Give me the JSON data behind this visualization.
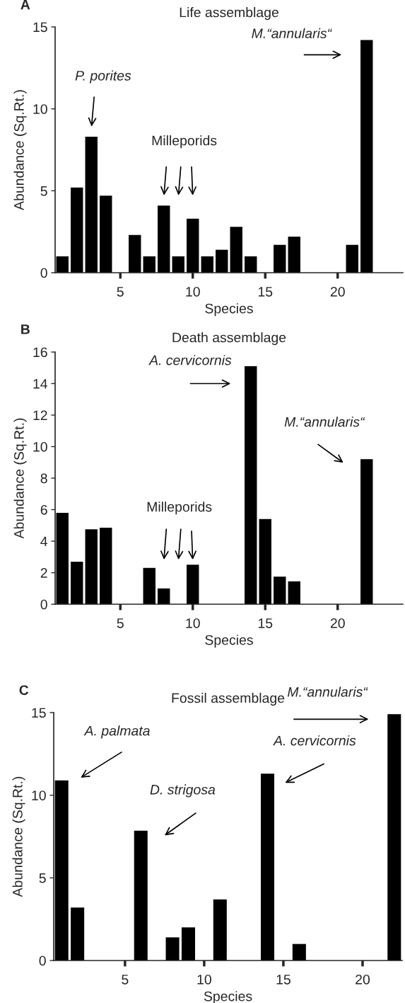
{
  "chart_data": [
    {
      "type": "bar",
      "title": "Life assemblage",
      "xlabel": "Species",
      "ylabel": "Abundance (Sq.Rt.)",
      "x": [
        1,
        2,
        3,
        4,
        6,
        7,
        8,
        9,
        10,
        11,
        12,
        13,
        14,
        16,
        17,
        21,
        22
      ],
      "values": [
        1.0,
        5.2,
        8.3,
        4.7,
        2.3,
        1.0,
        4.1,
        1.0,
        3.3,
        1.0,
        1.4,
        2.8,
        1.0,
        1.7,
        2.2,
        1.7,
        14.2
      ],
      "color": "#000000",
      "xlim": [
        0.5,
        24.5
      ],
      "xticks": [
        5,
        10,
        15,
        20
      ],
      "ylim": [
        0,
        15
      ],
      "yticks": [
        0,
        5,
        10,
        15
      ],
      "grid": false,
      "legend": false,
      "annotations": [
        "A",
        "P. porites",
        "Milleporids",
        "M.“annularis“"
      ]
    },
    {
      "type": "bar",
      "title": "Death assemblage",
      "xlabel": "Species",
      "ylabel": "Abundance (Sq.Rt.)",
      "x": [
        1,
        2,
        3,
        4,
        7,
        8,
        10,
        14,
        15,
        16,
        17,
        22
      ],
      "values": [
        5.8,
        2.7,
        4.75,
        4.85,
        2.3,
        1.0,
        2.5,
        15.1,
        5.4,
        1.75,
        1.45,
        9.2
      ],
      "color": "#000000",
      "xlim": [
        0.5,
        24.5
      ],
      "xticks": [
        5,
        10,
        15,
        20
      ],
      "ylim": [
        0,
        16
      ],
      "yticks": [
        0,
        2,
        4,
        6,
        8,
        10,
        12,
        14,
        16
      ],
      "grid": false,
      "legend": false,
      "annotations": [
        "B",
        "A. cervicornis",
        "M.“annularis“",
        "Milleporids"
      ]
    },
    {
      "type": "bar",
      "title": "Fossil assemblage",
      "xlabel": "Species",
      "ylabel": "Abundance (Sq.Rt.)",
      "x": [
        1,
        2,
        6,
        8,
        9,
        11,
        14,
        16,
        22
      ],
      "values": [
        10.9,
        3.2,
        7.85,
        1.4,
        2.0,
        3.7,
        11.3,
        1.0,
        14.9
      ],
      "color": "#000000",
      "xlim": [
        0.5,
        22.5
      ],
      "xticks": [
        5,
        10,
        15,
        20
      ],
      "ylim": [
        0,
        15
      ],
      "yticks": [
        0,
        5,
        10,
        15
      ],
      "grid": false,
      "legend": false,
      "annotations": [
        "C",
        "A. palmata",
        "D. strigosa",
        "A. cervicornis",
        "M.“annularis“"
      ]
    }
  ]
}
